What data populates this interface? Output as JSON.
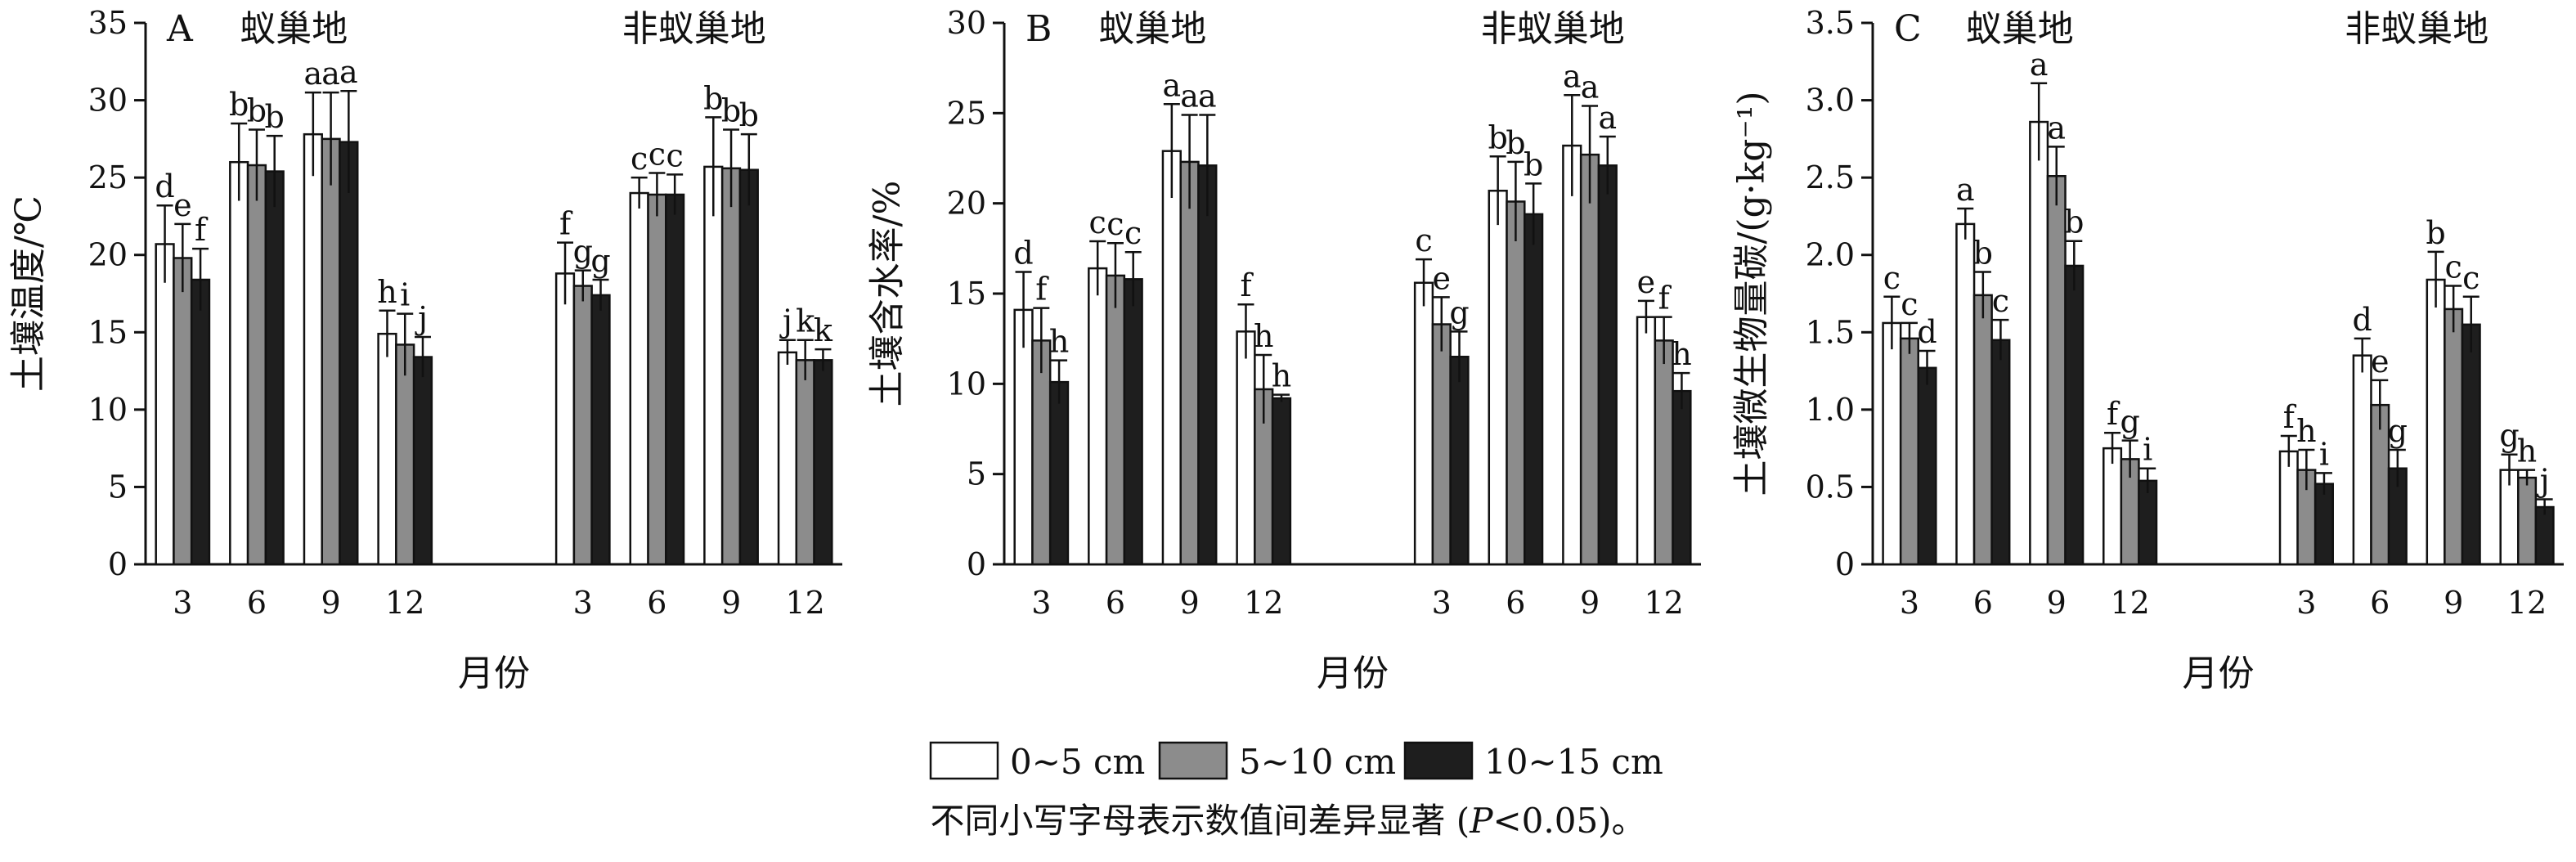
{
  "figure": {
    "legend": [
      {
        "label": "0~5 cm",
        "color": "#ffffff"
      },
      {
        "label": "5~10 cm",
        "color": "#8c8c8c"
      },
      {
        "label": "10~15 cm",
        "color": "#1e1e1e"
      }
    ],
    "caption": {
      "prefix": "不同小写字母表示数值间差异显著 (",
      "italic": "P",
      "suffix": "<0.05)。"
    }
  },
  "chart_data": [
    {
      "type": "bar",
      "panel": "A",
      "groups": [
        "蚁巢地",
        "非蚁巢地"
      ],
      "categories": [
        "3",
        "6",
        "9",
        "12",
        "3",
        "6",
        "9",
        "12"
      ],
      "xlabel": "月份",
      "ylabel": "土壤温度/℃",
      "ylim": [
        0,
        35
      ],
      "yticks": [
        "0",
        "5",
        "10",
        "15",
        "20",
        "25",
        "30",
        "35"
      ],
      "series": [
        {
          "name": "0~5 cm",
          "values": [
            20.7,
            26.0,
            27.8,
            14.9,
            18.8,
            24.0,
            25.7,
            13.7
          ],
          "errors": [
            2.5,
            2.5,
            2.7,
            1.5,
            2.0,
            1.0,
            3.2,
            0.8
          ],
          "labels": [
            "d",
            "b",
            "a",
            "h",
            "f",
            "c",
            "b",
            "j"
          ]
        },
        {
          "name": "5~10 cm",
          "values": [
            19.8,
            25.8,
            27.5,
            14.2,
            18.0,
            23.9,
            25.6,
            13.2
          ],
          "errors": [
            2.2,
            2.3,
            3.0,
            2.0,
            1.0,
            1.4,
            2.5,
            1.3
          ],
          "labels": [
            "e",
            "b",
            "a",
            "i",
            "g",
            "c",
            "b",
            "k"
          ]
        },
        {
          "name": "10~15 cm",
          "values": [
            18.4,
            25.4,
            27.3,
            13.4,
            17.4,
            23.9,
            25.5,
            13.2
          ],
          "errors": [
            2.0,
            2.3,
            3.3,
            1.3,
            1.0,
            1.3,
            2.3,
            0.7
          ],
          "labels": [
            "f",
            "b",
            "a",
            "j",
            "g",
            "c",
            "b",
            "k"
          ]
        }
      ]
    },
    {
      "type": "bar",
      "panel": "B",
      "groups": [
        "蚁巢地",
        "非蚁巢地"
      ],
      "categories": [
        "3",
        "6",
        "9",
        "12",
        "3",
        "6",
        "9",
        "12"
      ],
      "xlabel": "月份",
      "ylabel": "土壤含水率/%",
      "ylim": [
        0,
        30
      ],
      "yticks": [
        "0",
        "5",
        "10",
        "15",
        "20",
        "25",
        "30"
      ],
      "series": [
        {
          "name": "0~5 cm",
          "values": [
            14.1,
            16.4,
            22.9,
            12.9,
            15.6,
            20.7,
            23.2,
            13.7
          ],
          "errors": [
            2.1,
            1.5,
            2.6,
            1.5,
            1.3,
            1.9,
            2.8,
            0.9
          ],
          "labels": [
            "d",
            "c",
            "a",
            "f",
            "c",
            "b",
            "a",
            "e"
          ]
        },
        {
          "name": "5~10 cm",
          "values": [
            12.4,
            16.0,
            22.3,
            9.7,
            13.3,
            20.1,
            22.7,
            12.4
          ],
          "errors": [
            1.8,
            1.8,
            2.6,
            1.9,
            1.5,
            2.2,
            2.7,
            1.3
          ],
          "labels": [
            "f",
            "c",
            "a",
            "h",
            "e",
            "b",
            "a",
            "f"
          ]
        },
        {
          "name": "10~15 cm",
          "values": [
            10.1,
            15.8,
            22.1,
            9.2,
            11.5,
            19.4,
            22.1,
            9.6
          ],
          "errors": [
            1.2,
            1.5,
            2.8,
            0.2,
            1.4,
            1.7,
            1.6,
            1.0
          ],
          "labels": [
            "h",
            "c",
            "a",
            "h",
            "g",
            "b",
            "a",
            "h"
          ]
        }
      ]
    },
    {
      "type": "bar",
      "panel": "C",
      "groups": [
        "蚁巢地",
        "非蚁巢地"
      ],
      "categories": [
        "3",
        "6",
        "9",
        "12",
        "3",
        "6",
        "9",
        "12"
      ],
      "xlabel": "月份",
      "ylabel": "土壤微生物量碳/(g·kg⁻¹)",
      "ylim": [
        0,
        3.5
      ],
      "yticks": [
        "0",
        "0.5",
        "1.0",
        "1.5",
        "2.0",
        "2.5",
        "3.0",
        "3.5"
      ],
      "series": [
        {
          "name": "0~5 cm",
          "values": [
            1.56,
            2.2,
            2.86,
            0.75,
            0.73,
            1.35,
            1.84,
            0.61
          ],
          "errors": [
            0.17,
            0.1,
            0.25,
            0.1,
            0.1,
            0.11,
            0.18,
            0.1
          ],
          "labels": [
            "c",
            "a",
            "a",
            "f",
            "f",
            "d",
            "b",
            "g"
          ]
        },
        {
          "name": "5~10 cm",
          "values": [
            1.46,
            1.74,
            2.51,
            0.68,
            0.61,
            1.03,
            1.65,
            0.56
          ],
          "errors": [
            0.1,
            0.15,
            0.19,
            0.12,
            0.13,
            0.16,
            0.15,
            0.05
          ],
          "labels": [
            "c",
            "b",
            "a",
            "g",
            "h",
            "e",
            "c",
            "h"
          ]
        },
        {
          "name": "10~15 cm",
          "values": [
            1.27,
            1.45,
            1.93,
            0.54,
            0.52,
            0.62,
            1.55,
            0.37
          ],
          "errors": [
            0.11,
            0.13,
            0.16,
            0.08,
            0.07,
            0.12,
            0.18,
            0.05
          ],
          "labels": [
            "d",
            "c",
            "b",
            "i",
            "i",
            "g",
            "c",
            "j"
          ]
        }
      ]
    }
  ]
}
